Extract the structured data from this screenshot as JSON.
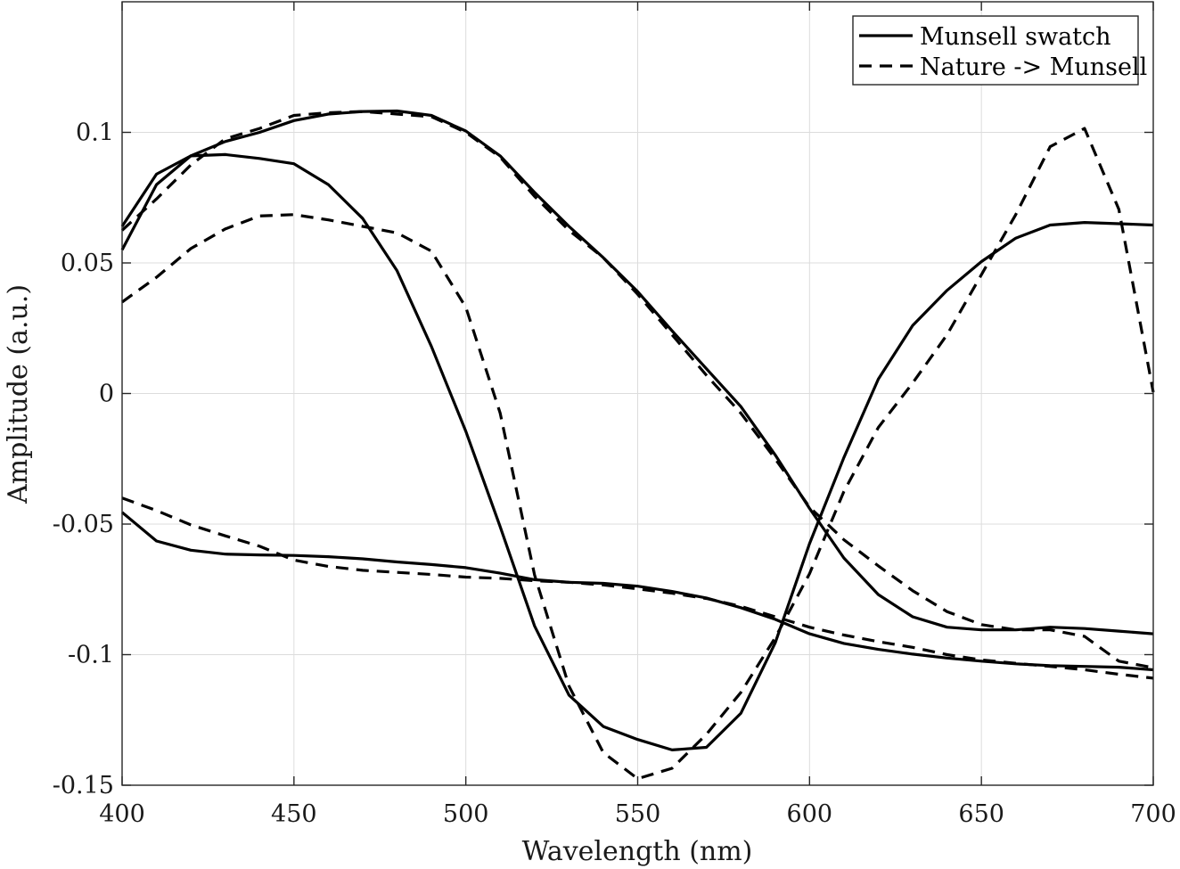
{
  "chart_data": {
    "type": "line",
    "title": "",
    "xlabel": "Wavelength (nm)",
    "ylabel": "Amplitude (a.u.)",
    "xlim": [
      400,
      700
    ],
    "ylim": [
      -0.15,
      0.15
    ],
    "x_ticks": [
      400,
      450,
      500,
      550,
      600,
      650,
      700
    ],
    "x_tick_labels": [
      "400",
      "450",
      "500",
      "550",
      "600",
      "650",
      "700"
    ],
    "y_ticks": [
      -0.15,
      -0.1,
      -0.05,
      0,
      0.05,
      0.1
    ],
    "y_tick_labels": [
      "-0.15",
      "-0.1",
      "-0.05",
      "0",
      "0.05",
      "0.1"
    ],
    "grid": true,
    "legend_position": "top-right",
    "legend": [
      {
        "label": "Munsell swatch",
        "style": "solid"
      },
      {
        "label": "Nature -> Munsell",
        "style": "dashed"
      }
    ],
    "x": [
      400,
      410,
      420,
      430,
      440,
      450,
      460,
      470,
      480,
      490,
      500,
      510,
      520,
      530,
      540,
      550,
      560,
      570,
      580,
      590,
      600,
      610,
      620,
      630,
      640,
      650,
      660,
      670,
      680,
      690,
      700
    ],
    "series": [
      {
        "style": "solid",
        "values": [
          0.064,
          0.084,
          0.091,
          0.0965,
          0.1,
          0.1045,
          0.107,
          0.108,
          0.1082,
          0.1065,
          0.1005,
          0.091,
          0.077,
          0.064,
          0.052,
          0.039,
          0.024,
          0.0095,
          -0.005,
          -0.0235,
          -0.044,
          -0.063,
          -0.077,
          -0.0855,
          -0.0895,
          -0.0905,
          -0.0905,
          -0.0895,
          -0.09,
          -0.091,
          -0.092
        ]
      },
      {
        "style": "dashed",
        "values": [
          0.0625,
          0.0745,
          0.0875,
          0.0975,
          0.1015,
          0.1065,
          0.1075,
          0.108,
          0.107,
          0.106,
          0.1,
          0.0905,
          0.0755,
          0.0625,
          0.052,
          0.038,
          0.0225,
          0.007,
          -0.0075,
          -0.025,
          -0.0435,
          -0.056,
          -0.066,
          -0.0755,
          -0.0835,
          -0.0885,
          -0.0905,
          -0.0905,
          -0.093,
          -0.1025,
          -0.105
        ]
      },
      {
        "style": "solid",
        "values": [
          0.055,
          0.08,
          0.091,
          0.0915,
          0.09,
          0.088,
          0.08,
          0.067,
          0.047,
          0.018,
          -0.0145,
          -0.051,
          -0.089,
          -0.1155,
          -0.1275,
          -0.1325,
          -0.1365,
          -0.1355,
          -0.1225,
          -0.0955,
          -0.0575,
          -0.0245,
          0.0055,
          0.026,
          0.0395,
          0.0505,
          0.0595,
          0.0645,
          0.0655,
          0.065,
          0.0645
        ]
      },
      {
        "style": "dashed",
        "values": [
          0.035,
          0.0445,
          0.0555,
          0.063,
          0.068,
          0.0685,
          0.0665,
          0.064,
          0.0615,
          0.0545,
          0.033,
          -0.0075,
          -0.0695,
          -0.112,
          -0.1375,
          -0.1475,
          -0.1435,
          -0.1305,
          -0.1145,
          -0.0935,
          -0.069,
          -0.0375,
          -0.013,
          0.004,
          0.0225,
          0.0455,
          0.0685,
          0.0945,
          0.1015,
          0.0705,
          0.0005
        ]
      },
      {
        "style": "solid",
        "values": [
          -0.0455,
          -0.0565,
          -0.06,
          -0.0615,
          -0.0618,
          -0.062,
          -0.0625,
          -0.0633,
          -0.0645,
          -0.0655,
          -0.0667,
          -0.0688,
          -0.0713,
          -0.0723,
          -0.0727,
          -0.0738,
          -0.0758,
          -0.0783,
          -0.082,
          -0.0865,
          -0.092,
          -0.0957,
          -0.098,
          -0.0998,
          -0.1013,
          -0.1025,
          -0.1035,
          -0.1042,
          -0.1045,
          -0.1048,
          -0.1058
        ]
      },
      {
        "style": "dashed",
        "values": [
          -0.04,
          -0.0448,
          -0.0503,
          -0.0545,
          -0.0585,
          -0.0638,
          -0.0662,
          -0.0677,
          -0.0685,
          -0.0693,
          -0.0703,
          -0.0708,
          -0.0717,
          -0.0723,
          -0.0733,
          -0.0748,
          -0.0765,
          -0.0785,
          -0.0815,
          -0.0855,
          -0.0895,
          -0.0925,
          -0.095,
          -0.0972,
          -0.1,
          -0.102,
          -0.1033,
          -0.1045,
          -0.1058,
          -0.1075,
          -0.109
        ]
      }
    ]
  }
}
